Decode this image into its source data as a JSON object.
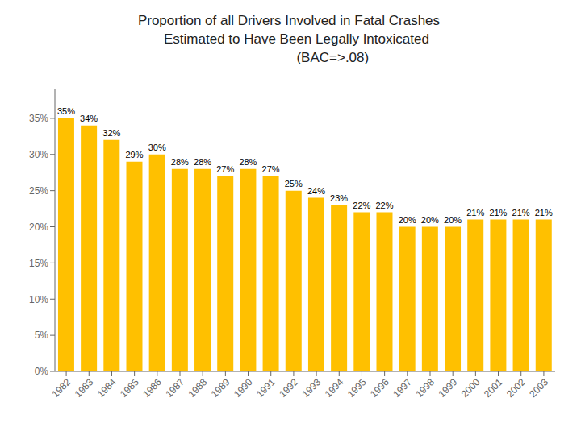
{
  "chart_data": {
    "type": "bar",
    "title": "Proportion of all Drivers Involved in Fatal Crashes\n    Estimated to Have Been Legally Intoxicated\n                       (BAC=>.08)",
    "categories": [
      "1982",
      "1983",
      "1984",
      "1985",
      "1986",
      "1987",
      "1988",
      "1989",
      "1990",
      "1991",
      "1992",
      "1993",
      "1994",
      "1995",
      "1996",
      "1997",
      "1998",
      "1999",
      "2000",
      "2001",
      "2002",
      "2003"
    ],
    "values": [
      35,
      34,
      32,
      29,
      30,
      28,
      28,
      27,
      28,
      27,
      25,
      24,
      23,
      22,
      22,
      20,
      20,
      20,
      21,
      21,
      21,
      21
    ],
    "value_labels": [
      "35%",
      "34%",
      "32%",
      "29%",
      "30%",
      "28%",
      "28%",
      "27%",
      "28%",
      "27%",
      "25%",
      "24%",
      "23%",
      "22%",
      "22%",
      "20%",
      "20%",
      "20%",
      "21%",
      "21%",
      "21%",
      "21%"
    ],
    "data_labels": true,
    "color": "#FFC000",
    "ylim": [
      0,
      39
    ],
    "yticks": [
      {
        "value": 0,
        "label": "0%"
      },
      {
        "value": 5,
        "label": "5%"
      },
      {
        "value": 10,
        "label": "10%"
      },
      {
        "value": 15,
        "label": "15%"
      },
      {
        "value": 20,
        "label": "20%"
      },
      {
        "value": 25,
        "label": "25%"
      },
      {
        "value": 30,
        "label": "30%"
      },
      {
        "value": 35,
        "label": "35%"
      }
    ],
    "grid": false
  }
}
